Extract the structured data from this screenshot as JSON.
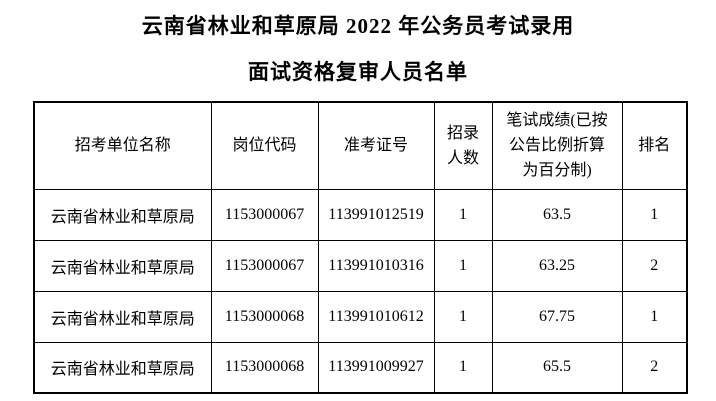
{
  "title": {
    "line1": "云南省林业和草原局 2022 年公务员考试录用",
    "line2": "面试资格复审人员名单"
  },
  "table": {
    "headers": [
      "招考单位名称",
      "岗位代码",
      "准考证号",
      "招录\n人数",
      "笔试成绩(已按\n公告比例折算\n为百分制)",
      "排名"
    ],
    "rows": [
      [
        "云南省林业和草原局",
        "1153000067",
        "113991012519",
        "1",
        "63.5",
        "1"
      ],
      [
        "云南省林业和草原局",
        "1153000067",
        "113991010316",
        "1",
        "63.25",
        "2"
      ],
      [
        "云南省林业和草原局",
        "1153000068",
        "113991010612",
        "1",
        "67.75",
        "1"
      ],
      [
        "云南省林业和草原局",
        "1153000068",
        "113991009927",
        "1",
        "65.5",
        "2"
      ]
    ]
  },
  "colors": {
    "text": "#000000",
    "background": "#ffffff",
    "border": "#000000"
  }
}
